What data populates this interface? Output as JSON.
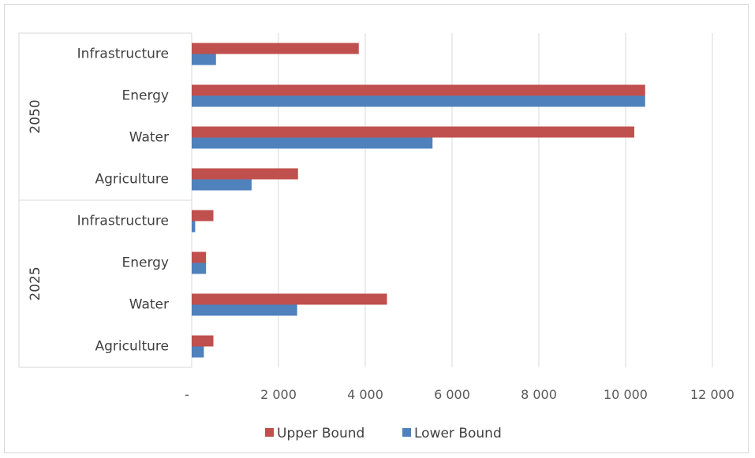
{
  "chart_data": {
    "type": "bar",
    "orientation": "horizontal",
    "title": "",
    "xlabel": "",
    "ylabel": "",
    "xlim": [
      0,
      12000
    ],
    "grid": true,
    "legend_position": "bottom",
    "x_tick_labels": [
      "-",
      "2 000",
      "4 000",
      "6 000",
      "8 000",
      "10 000",
      "12 000"
    ],
    "x_ticks": [
      0,
      2000,
      4000,
      6000,
      8000,
      10000,
      12000
    ],
    "groups": [
      "2050",
      "2025"
    ],
    "categories": [
      {
        "group": "2050",
        "label": "Infrastructure"
      },
      {
        "group": "2050",
        "label": "Energy"
      },
      {
        "group": "2050",
        "label": "Water"
      },
      {
        "group": "2050",
        "label": "Agriculture"
      },
      {
        "group": "2025",
        "label": "Infrastructure"
      },
      {
        "group": "2025",
        "label": "Energy"
      },
      {
        "group": "2025",
        "label": "Water"
      },
      {
        "group": "2025",
        "label": "Agriculture"
      }
    ],
    "series": [
      {
        "name": "Upper Bound",
        "color": "#c0504d",
        "values": [
          3850,
          10450,
          10200,
          2450,
          500,
          330,
          4500,
          500
        ]
      },
      {
        "name": "Lower Bound",
        "color": "#4f81bd",
        "values": [
          560,
          10450,
          5550,
          1380,
          80,
          330,
          2430,
          280
        ]
      }
    ]
  }
}
